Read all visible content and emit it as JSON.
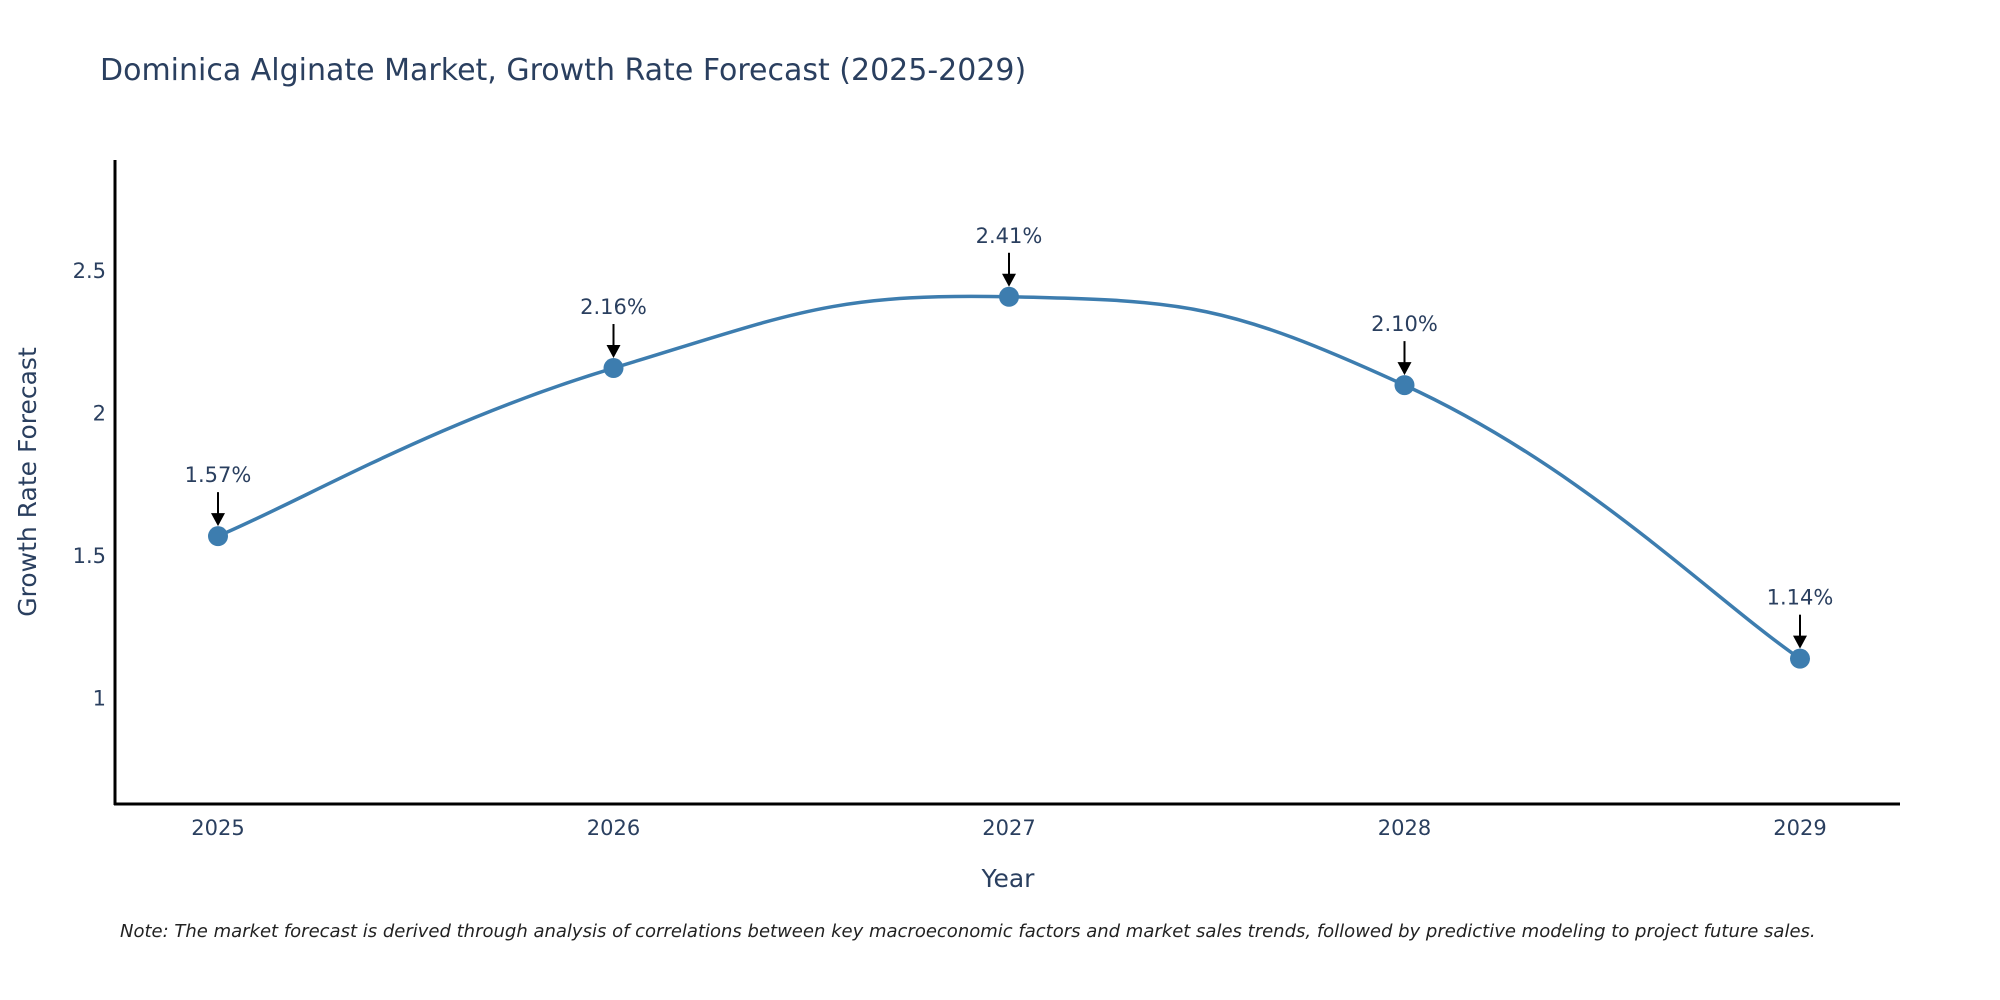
{
  "chart_data": {
    "type": "line",
    "title": "Dominica Alginate Market, Growth Rate Forecast (2025-2029)",
    "xlabel": "Year",
    "ylabel": "Growth Rate Forecast",
    "categories": [
      "2025",
      "2026",
      "2027",
      "2028",
      "2029"
    ],
    "series": [
      {
        "name": "Growth Rate Forecast",
        "values": [
          1.57,
          2.16,
          2.41,
          2.1,
          1.14
        ],
        "labels": [
          "1.57%",
          "2.16%",
          "2.41%",
          "2.10%",
          "1.14%"
        ]
      }
    ],
    "ylim": [
      0.63,
      2.89
    ],
    "yticks": [
      1,
      1.5,
      2,
      2.5
    ],
    "ytick_labels": [
      "1",
      "1.5",
      "2",
      "2.5"
    ],
    "line_shape": "spline",
    "grid": false,
    "color": "#3d7daf",
    "note": "Note: The market forecast is derived through analysis of correlations between key macroeconomic factors and market sales trends, followed by predictive modeling to project future sales."
  }
}
